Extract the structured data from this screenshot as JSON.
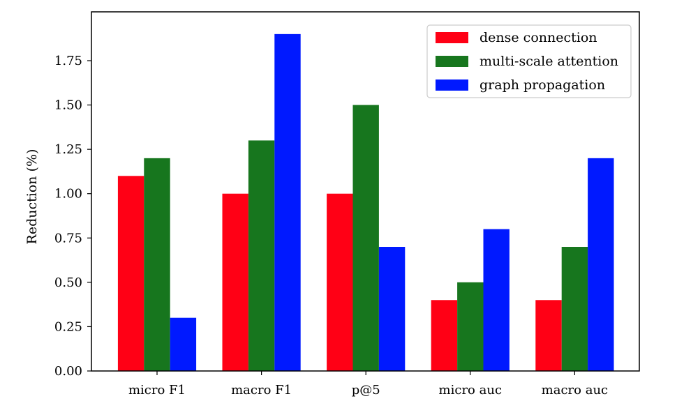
{
  "chart_data": {
    "type": "bar",
    "title": "",
    "xlabel": "",
    "ylabel": "Reduction (%)",
    "ylim": [
      0,
      1.8
    ],
    "yticks": [
      "0.00",
      "0.25",
      "0.50",
      "0.75",
      "1.00",
      "1.25",
      "1.50",
      "1.75"
    ],
    "categories": [
      "micro F1",
      "macro F1",
      "p@5",
      "micro auc",
      "macro auc"
    ],
    "series": [
      {
        "name": "dense connection",
        "color": "#ff0015",
        "values": [
          1.1,
          1.0,
          1.0,
          0.4,
          0.4
        ]
      },
      {
        "name": "multi-scale attention",
        "color": "#17761e",
        "values": [
          1.2,
          1.3,
          1.5,
          0.5,
          0.7
        ]
      },
      {
        "name": "graph propagation",
        "color": "#0019ff",
        "values": [
          0.3,
          1.9,
          0.7,
          0.8,
          1.2
        ]
      }
    ],
    "grid": false,
    "legend": "top-right"
  }
}
